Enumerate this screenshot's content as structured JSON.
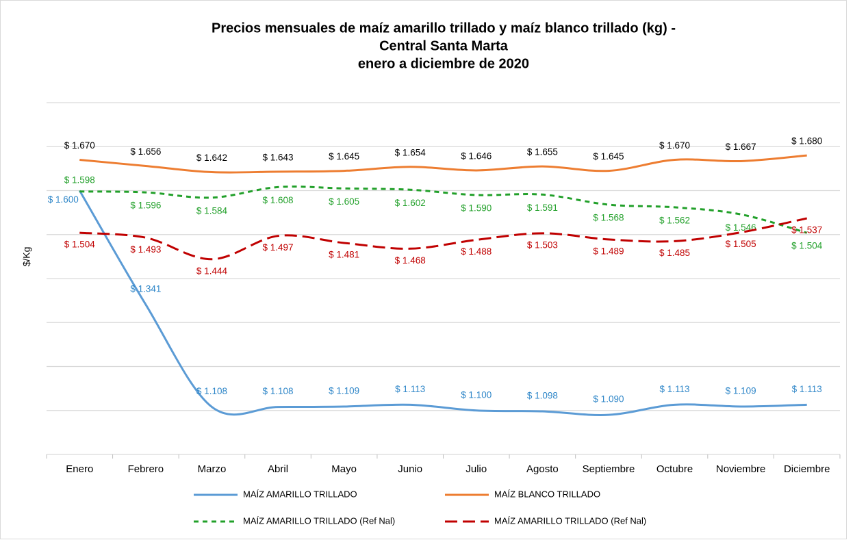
{
  "chart_data": {
    "type": "line",
    "title": [
      "Precios mensuales de maíz amarillo trillado y maíz blanco trillado (kg) -",
      "Central Santa Marta",
      "enero a diciembre de 2020"
    ],
    "y_label": "$/Kg",
    "categories": [
      "Enero",
      "Febrero",
      "Marzo",
      "Abril",
      "Mayo",
      "Junio",
      "Julio",
      "Agosto",
      "Septiembre",
      "Octubre",
      "Noviembre",
      "Diciembre"
    ],
    "ylim": [
      1000,
      1800
    ],
    "yticks": [
      1000,
      1100,
      1200,
      1300,
      1400,
      1500,
      1600,
      1700,
      1800
    ],
    "grid": true,
    "smooth": true,
    "series": [
      {
        "name": "MAÍZ AMARILLO TRILLADO",
        "color": "#5b9bd5",
        "label_color": "#2e86c8",
        "dash": "none",
        "values": [
          1600,
          1341,
          1108,
          1108,
          1109,
          1113,
          1100,
          1098,
          1090,
          1113,
          1109,
          1113
        ],
        "value_labels": [
          "$ 1.600",
          "$ 1.341",
          "$ 1.108",
          "$ 1.108",
          "$ 1.109",
          "$ 1.113",
          "$ 1.100",
          "$ 1.098",
          "$ 1.090",
          "$ 1.113",
          "$ 1.109",
          "$ 1.113"
        ]
      },
      {
        "name": "MAÍZ BLANCO TRILLADO",
        "color": "#ed7d31",
        "label_color": "#000000",
        "dash": "none",
        "values": [
          1670,
          1656,
          1642,
          1643,
          1645,
          1654,
          1646,
          1655,
          1645,
          1670,
          1667,
          1680
        ],
        "value_labels": [
          "$ 1.670",
          "$ 1.656",
          "$ 1.642",
          "$ 1.643",
          "$ 1.645",
          "$ 1.654",
          "$ 1.646",
          "$ 1.655",
          "$ 1.645",
          "$ 1.670",
          "$ 1.667",
          "$ 1.680"
        ]
      },
      {
        "name": "MAÍZ AMARILLO TRILLADO (Ref Nal)",
        "color": "#22a02a",
        "label_color": "#22a02a",
        "dash": "7 6",
        "values": [
          1598,
          1596,
          1584,
          1608,
          1605,
          1602,
          1590,
          1591,
          1568,
          1562,
          1546,
          1504
        ],
        "value_labels": [
          "$ 1.598",
          "$ 1.596",
          "$ 1.584",
          "$ 1.608",
          "$ 1.605",
          "$ 1.602",
          "$ 1.590",
          "$ 1.591",
          "$ 1.568",
          "$ 1.562",
          "$ 1.546",
          "$ 1.504"
        ]
      },
      {
        "name": "MAÍZ AMARILLO TRILLADO (Ref Nal)",
        "color": "#c00000",
        "label_color": "#c00000",
        "dash": "18 8",
        "values": [
          1504,
          1493,
          1444,
          1497,
          1481,
          1468,
          1488,
          1503,
          1489,
          1485,
          1505,
          1537
        ],
        "value_labels": [
          "$ 1.504",
          "$ 1.493",
          "$ 1.444",
          "$ 1.497",
          "$ 1.481",
          "$ 1.468",
          "$ 1.488",
          "$ 1.503",
          "$ 1.489",
          "$ 1.485",
          "$ 1.505",
          "$ 1.537"
        ]
      }
    ]
  }
}
